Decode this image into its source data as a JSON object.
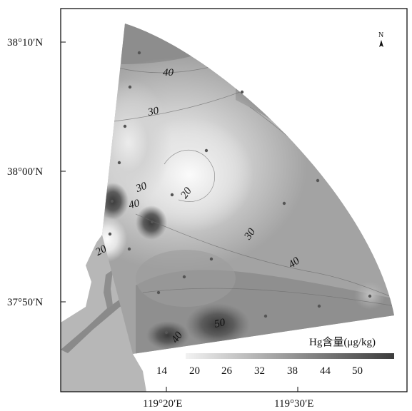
{
  "map": {
    "axes": {
      "lat_ticks": [
        {
          "value": 38.1667,
          "label": "38°10′N"
        },
        {
          "value": 38.0,
          "label": "38°00′N"
        },
        {
          "value": 37.8333,
          "label": "37°50′N"
        }
      ],
      "lon_ticks": [
        {
          "value": 119.3333,
          "label": "119°20′E"
        },
        {
          "value": 119.5,
          "label": "119°30′E"
        }
      ]
    },
    "north_arrow": {
      "label": "N",
      "icon": "north-arrow-icon"
    },
    "legend": {
      "title": "Hg含量(μg/kg)",
      "ticks": [
        "14",
        "20",
        "26",
        "32",
        "38",
        "44",
        "50"
      ],
      "min": 11,
      "max": 56,
      "colors": [
        "#f2f2f2",
        "#3c3c3c"
      ]
    },
    "contour_labels": [
      {
        "text": "40"
      },
      {
        "text": "30"
      },
      {
        "text": "30"
      },
      {
        "text": "20"
      },
      {
        "text": "40"
      },
      {
        "text": "30"
      },
      {
        "text": "20"
      },
      {
        "text": "40"
      },
      {
        "text": "50"
      },
      {
        "text": "40"
      }
    ],
    "colors": {
      "land": "#b7b7b7",
      "land_dark": "#8a8a8a",
      "frame": "#111111"
    }
  }
}
